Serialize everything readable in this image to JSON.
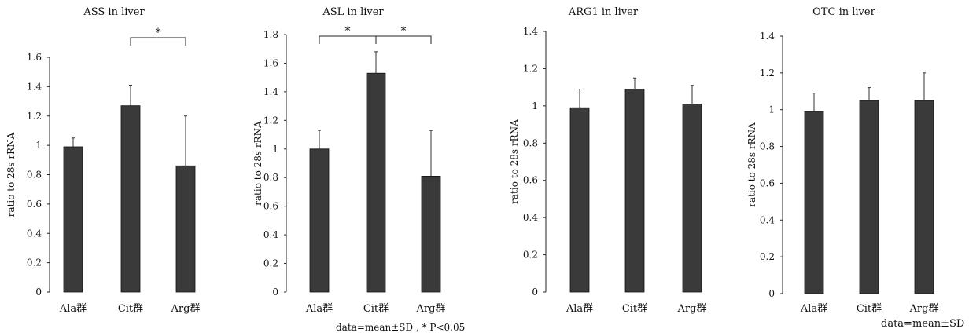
{
  "footnotes": {
    "note_1": "data=mean±SD , * P<0.05",
    "note_2": "data=mean±SD"
  },
  "chart_data": [
    {
      "type": "bar",
      "title": "ASS in liver",
      "ylabel": "ratio to 28s rRNA",
      "xlabel": "",
      "categories": [
        "Ala群",
        "Cit群",
        "Arg群"
      ],
      "values": [
        0.99,
        1.27,
        0.86
      ],
      "errors": [
        0.06,
        0.14,
        0.34
      ],
      "ylim": [
        0,
        1.6
      ],
      "yticks": [
        "0",
        "0.2",
        "0.4",
        "0.6",
        "0.8",
        "1",
        "1.2",
        "1.4",
        "1.6"
      ],
      "significance": [
        {
          "from": 1,
          "to": 2,
          "label": "*"
        }
      ],
      "bar_color": "#3a3a3a"
    },
    {
      "type": "bar",
      "title": "ASL in liver",
      "ylabel": "ratio to 28s rRNA",
      "xlabel": "",
      "categories": [
        "Ala群",
        "Cit群",
        "Arg群"
      ],
      "values": [
        1.0,
        1.53,
        0.81
      ],
      "errors": [
        0.13,
        0.15,
        0.32
      ],
      "ylim": [
        0,
        1.8
      ],
      "yticks": [
        "0",
        "0.2",
        "0.4",
        "0.6",
        "0.8",
        "1",
        "1.2",
        "1.4",
        "1.6",
        "1.8"
      ],
      "significance": [
        {
          "from": 0,
          "to": 1,
          "label": "*"
        },
        {
          "from": 1,
          "to": 2,
          "label": "*"
        }
      ],
      "bar_color": "#3a3a3a"
    },
    {
      "type": "bar",
      "title": "ARG1 in liver",
      "ylabel": "ratio to 28s rRNA",
      "xlabel": "",
      "categories": [
        "Ala群",
        "Cit群",
        "Arg群"
      ],
      "values": [
        0.99,
        1.09,
        1.01
      ],
      "errors": [
        0.1,
        0.06,
        0.1
      ],
      "ylim": [
        0,
        1.4
      ],
      "yticks": [
        "0",
        "0.2",
        "0.4",
        "0.6",
        "0.8",
        "1",
        "1.2",
        "1.4"
      ],
      "significance": [],
      "bar_color": "#3a3a3a"
    },
    {
      "type": "bar",
      "title": "OTC  in liver",
      "ylabel": "ratio to 28s rRNA",
      "xlabel": "",
      "categories": [
        "Ala群",
        "Cit群",
        "Arg群"
      ],
      "values": [
        0.99,
        1.05,
        1.05
      ],
      "errors": [
        0.1,
        0.07,
        0.15
      ],
      "ylim": [
        0,
        1.4
      ],
      "yticks": [
        "0",
        "0.2",
        "0.4",
        "0.6",
        "0.8",
        "1",
        "1.2",
        "1.4"
      ],
      "significance": [],
      "bar_color": "#3a3a3a"
    }
  ]
}
